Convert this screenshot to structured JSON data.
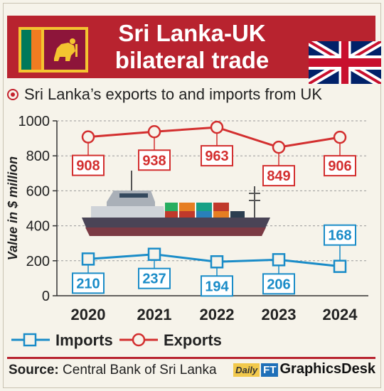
{
  "header": {
    "title_line1": "Sri Lanka-UK",
    "title_line2": "bilateral trade"
  },
  "subtitle": "Sri Lanka’s exports to and imports from UK",
  "chart_data": {
    "type": "line",
    "x": [
      "2020",
      "2021",
      "2022",
      "2023",
      "2024"
    ],
    "ylabel": "Value in $ million",
    "ylim": [
      0,
      1000
    ],
    "yticks": [
      0,
      200,
      400,
      600,
      800,
      1000
    ],
    "grid": true,
    "legend_placement": "bottom",
    "series": [
      {
        "name": "Imports",
        "color": "#1a8cc8",
        "values": [
          210,
          237,
          194,
          206,
          168
        ]
      },
      {
        "name": "Exports",
        "color": "#d32f2f",
        "values": [
          908,
          938,
          963,
          849,
          906
        ]
      }
    ]
  },
  "source": {
    "label": "Source:",
    "text": " Central Bank of Sri Lanka"
  },
  "brand": {
    "daily": "Daily",
    "ft": "FT",
    "name": "GraphicsDesk"
  },
  "colors": {
    "header_red": "#b8232f",
    "imports_blue": "#1a8cc8",
    "exports_red": "#d32f2f"
  }
}
